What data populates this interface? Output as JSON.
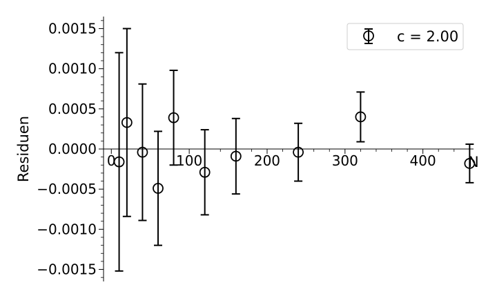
{
  "chart_data": {
    "type": "scatter",
    "title": "",
    "xlabel": "N",
    "ylabel": "Residuen",
    "xlim": [
      -10,
      465
    ],
    "ylim": [
      -0.00165,
      0.00165
    ],
    "x_ticks": [
      0,
      100,
      200,
      300,
      400
    ],
    "x_tick_labels": [
      "0",
      "100",
      "200",
      "300",
      "400"
    ],
    "y_ticks": [
      -0.0015,
      -0.001,
      -0.0005,
      0.0,
      0.0005,
      0.001,
      0.0015
    ],
    "y_tick_labels": [
      "−0.0015",
      "−0.0010",
      "−0.0005",
      "0.0000",
      "0.0005",
      "0.0010",
      "0.0015"
    ],
    "grid": false,
    "legend_position": "top-right",
    "series": [
      {
        "name": "c = 2.00",
        "color": "#000000",
        "marker": "open-circle",
        "x": [
          10,
          20,
          40,
          60,
          80,
          120,
          160,
          240,
          320,
          460
        ],
        "y": [
          -0.00016,
          0.00033,
          -4e-05,
          -0.00049,
          0.00039,
          -0.00029,
          -9e-05,
          -4e-05,
          0.0004,
          -0.00018
        ],
        "yerr": [
          0.00136,
          0.00117,
          0.00085,
          0.00071,
          0.00059,
          0.00053,
          0.00047,
          0.00036,
          0.00031,
          0.00024
        ]
      }
    ]
  }
}
